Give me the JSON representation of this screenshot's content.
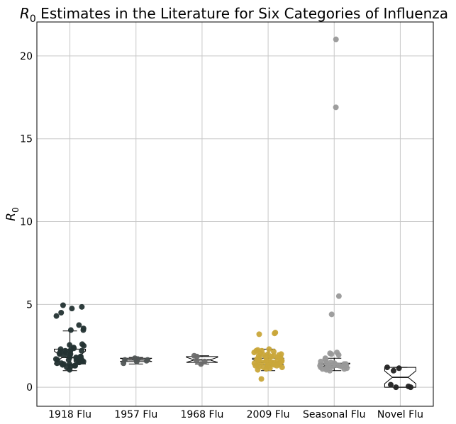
{
  "chart_data": {
    "type": "box-strip",
    "title_main": "R",
    "title_sub": "0",
    "title_rest": " Estimates in the Literature for Six Categories of Influenza",
    "ylabel_main": "R",
    "ylabel_sub": "0",
    "ylim": [
      -1.15,
      22.05
    ],
    "yticks": [
      0,
      5,
      10,
      15,
      20
    ],
    "grid": true,
    "categories": [
      "1918 Flu",
      "1957 Flu",
      "1968 Flu",
      "2009 Flu",
      "Seasonal Flu",
      "Novel Flu"
    ],
    "colors": [
      "#243333",
      "#505555",
      "#6b6b6b",
      "#c9a63a",
      "#999999",
      "#222222"
    ],
    "series": [
      {
        "name": "1918 Flu",
        "box": {
          "whisker_low": 1.0,
          "q1": 1.4,
          "median": 1.8,
          "q3": 2.3,
          "whisker_high": 3.4
        },
        "points": [
          4.95,
          4.85,
          4.75,
          4.5,
          4.3,
          3.75,
          3.55,
          3.45,
          3.45,
          2.6,
          2.55,
          2.5,
          2.4,
          2.35,
          2.3,
          2.25,
          2.2,
          2.2,
          2.15,
          2.15,
          2.1,
          2.05,
          2.0,
          2.0,
          1.95,
          1.9,
          1.85,
          1.85,
          1.8,
          1.8,
          1.75,
          1.7,
          1.7,
          1.65,
          1.65,
          1.6,
          1.6,
          1.55,
          1.55,
          1.5,
          1.5,
          1.45,
          1.45,
          1.4,
          1.4,
          1.35,
          1.3,
          1.3,
          1.25,
          1.2,
          1.05
        ]
      },
      {
        "name": "1957 Flu",
        "box": {
          "whisker_low": 1.4,
          "q1": 1.55,
          "median": 1.65,
          "q3": 1.75,
          "whisker_high": 1.8
        },
        "points": [
          1.75,
          1.7,
          1.65,
          1.65,
          1.6,
          1.55,
          1.45
        ]
      },
      {
        "name": "1968 Flu",
        "box": {
          "whisker_low": 1.4,
          "q1": 1.5,
          "median": 1.65,
          "q3": 1.85,
          "whisker_high": 1.9
        },
        "points": [
          1.9,
          1.85,
          1.6,
          1.55,
          1.4
        ]
      },
      {
        "name": "2009 Flu",
        "box": {
          "whisker_low": 1.0,
          "q1": 1.35,
          "median": 1.5,
          "q3": 1.75,
          "whisker_high": 2.3
        },
        "points": [
          3.3,
          3.25,
          3.2,
          2.3,
          2.25,
          2.2,
          2.2,
          2.15,
          2.1,
          2.05,
          2.0,
          2.0,
          1.95,
          1.95,
          1.9,
          1.9,
          1.85,
          1.85,
          1.8,
          1.8,
          1.75,
          1.75,
          1.7,
          1.7,
          1.7,
          1.65,
          1.65,
          1.6,
          1.6,
          1.6,
          1.55,
          1.55,
          1.5,
          1.5,
          1.5,
          1.45,
          1.45,
          1.45,
          1.4,
          1.4,
          1.4,
          1.4,
          1.35,
          1.35,
          1.35,
          1.3,
          1.3,
          1.3,
          1.3,
          1.25,
          1.25,
          1.2,
          1.2,
          1.15,
          1.1,
          1.05,
          0.5
        ]
      },
      {
        "name": "Seasonal Flu",
        "box": {
          "whisker_low": 1.0,
          "q1": 1.2,
          "median": 1.3,
          "q3": 1.45,
          "whisker_high": 1.75
        },
        "points": [
          21.0,
          16.9,
          5.5,
          4.4,
          2.1,
          2.05,
          2.0,
          1.95,
          1.75,
          1.7,
          1.65,
          1.55,
          1.5,
          1.45,
          1.45,
          1.4,
          1.4,
          1.35,
          1.35,
          1.3,
          1.3,
          1.3,
          1.25,
          1.25,
          1.2,
          1.2,
          1.15,
          1.15,
          1.1,
          1.1,
          1.05,
          1.0
        ]
      },
      {
        "name": "Novel Flu",
        "box": {
          "whisker_low": 0.0,
          "q1": 0.0,
          "median": 0.6,
          "q3": 1.2,
          "whisker_high": 1.2
        },
        "points": [
          1.2,
          1.15,
          1.0,
          0.15,
          0.05,
          0.0,
          0.0
        ]
      }
    ]
  }
}
